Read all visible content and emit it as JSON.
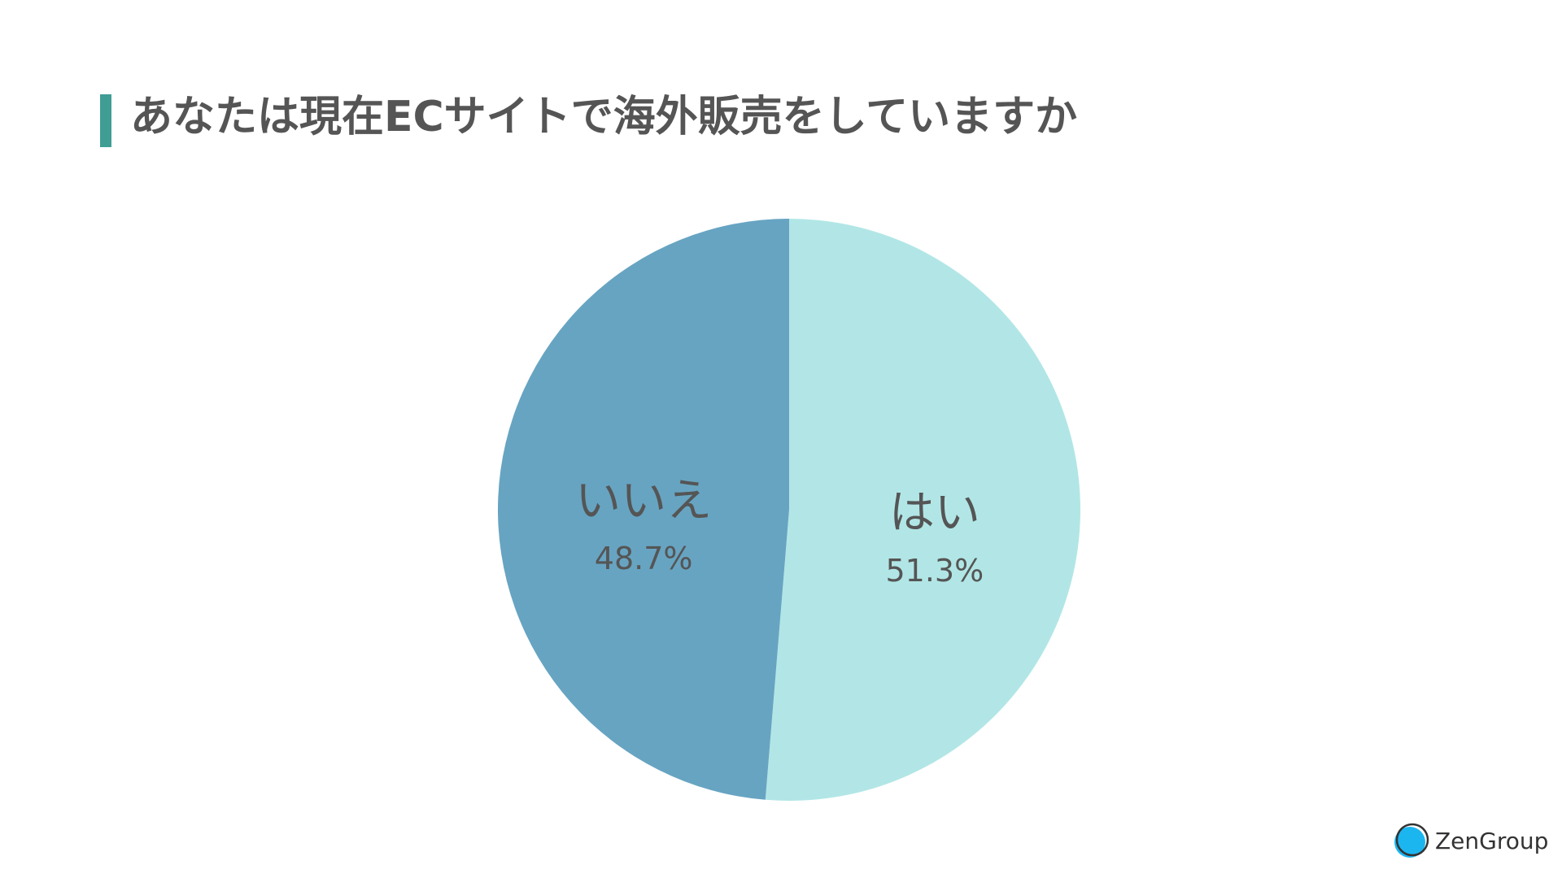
{
  "chart_data": {
    "type": "pie",
    "title": "あなたは現在ECサイトで海外販売をしていますか",
    "categories": [
      "はい",
      "いいえ"
    ],
    "values": [
      51.3,
      48.7
    ],
    "value_labels": [
      "51.3%",
      "48.7%"
    ],
    "colors": [
      "#b2e6e6",
      "#67a4c2"
    ]
  },
  "brand": "ZenGroup"
}
